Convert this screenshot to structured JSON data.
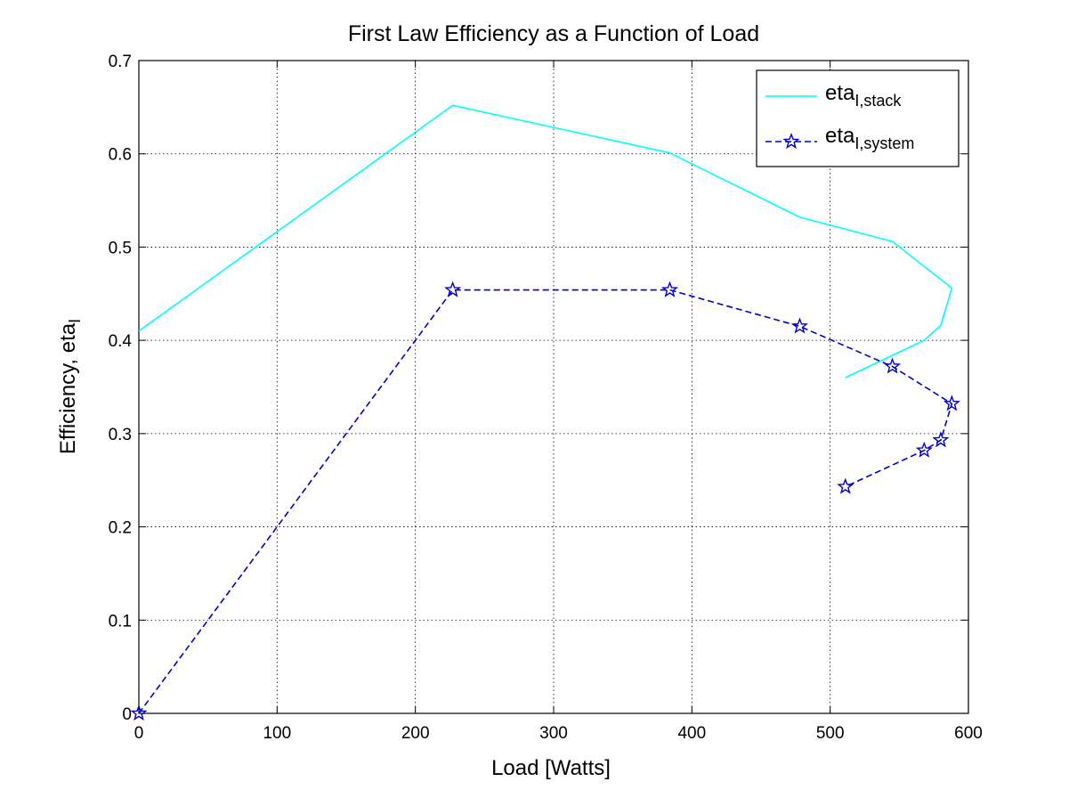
{
  "chart_data": {
    "type": "line",
    "title": "First Law Efficiency as a Function of Load",
    "xlabel": "Load [Watts]",
    "ylabel": "Efficiency, eta",
    "ylabel_sub": "I",
    "xlim": [
      0,
      600
    ],
    "ylim": [
      0,
      0.7
    ],
    "xticks": [
      0,
      100,
      200,
      300,
      400,
      500,
      600
    ],
    "yticks": [
      0,
      0.1,
      0.2,
      0.3,
      0.4,
      0.5,
      0.6,
      0.7
    ],
    "xtick_labels": [
      "0",
      "100",
      "200",
      "300",
      "400",
      "500",
      "600"
    ],
    "ytick_labels": [
      "0",
      "0.1",
      "0.2",
      "0.3",
      "0.4",
      "0.5",
      "0.6",
      "0.7"
    ],
    "grid": true,
    "legend_position": "top-right",
    "series": [
      {
        "name": "eta",
        "name_sub": "I,stack",
        "color": "#00ffff",
        "style": "solid",
        "marker": "none",
        "x": [
          0,
          227,
          384,
          478,
          545,
          588,
          580,
          568,
          511
        ],
        "y": [
          0.41,
          0.652,
          0.601,
          0.532,
          0.506,
          0.456,
          0.416,
          0.4,
          0.36
        ]
      },
      {
        "name": "eta",
        "name_sub": "I,system",
        "color": "#0000cc",
        "style": "dashed",
        "marker": "pentagram",
        "x": [
          0,
          227,
          384,
          478,
          545,
          588,
          580,
          568,
          511
        ],
        "y": [
          0.0,
          0.454,
          0.454,
          0.415,
          0.372,
          0.332,
          0.293,
          0.282,
          0.243
        ]
      }
    ]
  }
}
